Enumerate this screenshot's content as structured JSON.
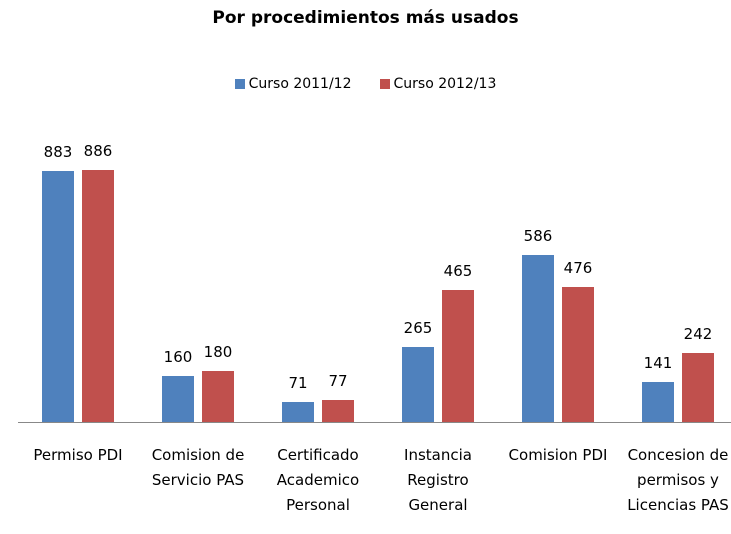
{
  "chart_data": {
    "type": "bar",
    "title": "Por procedimientos más usados",
    "categories": [
      "Permiso PDI",
      "Comision de Servicio PAS",
      "Certificado Academico Personal",
      "Instancia Registro General",
      "Comision PDI",
      "Concesion de permisos y Licencias PAS"
    ],
    "series": [
      {
        "name": "Curso 2011/12",
        "color": "#4f81bd",
        "values": [
          883,
          160,
          71,
          265,
          586,
          141
        ]
      },
      {
        "name": "Curso 2012/13",
        "color": "#c0504d",
        "values": [
          886,
          180,
          77,
          465,
          476,
          242
        ]
      }
    ],
    "legend": "top",
    "grid": false
  }
}
